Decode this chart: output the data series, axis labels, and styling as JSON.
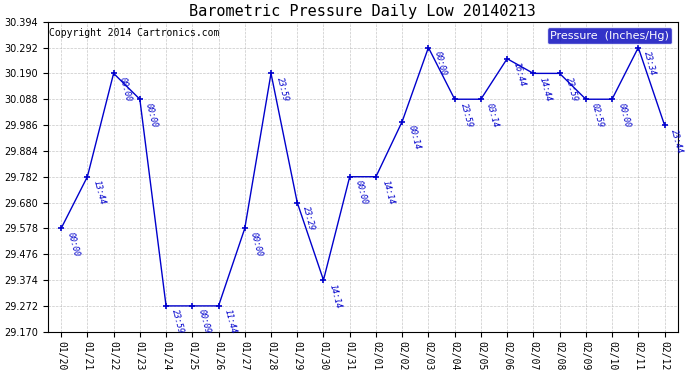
{
  "title": "Barometric Pressure Daily Low 20140213",
  "copyright": "Copyright 2014 Cartronics.com",
  "ylabel": "Pressure  (Inches/Hg)",
  "ylim": [
    29.17,
    30.394
  ],
  "background_color": "#ffffff",
  "plot_bg_color": "#ffffff",
  "line_color": "#0000cc",
  "grid_color": "#b0b0b0",
  "x_labels": [
    "01/20",
    "01/21",
    "01/22",
    "01/23",
    "01/24",
    "01/25",
    "01/26",
    "01/27",
    "01/28",
    "01/29",
    "01/30",
    "01/31",
    "02/01",
    "02/02",
    "02/03",
    "02/04",
    "02/05",
    "02/06",
    "02/07",
    "02/08",
    "02/09",
    "02/10",
    "02/11",
    "02/12"
  ],
  "y_values": [
    29.578,
    29.782,
    30.19,
    30.088,
    29.272,
    29.272,
    29.272,
    29.578,
    30.19,
    29.68,
    29.374,
    29.782,
    29.782,
    30.0,
    30.292,
    30.088,
    30.088,
    30.248,
    30.19,
    30.19,
    30.088,
    30.088,
    30.292,
    29.986
  ],
  "point_labels": [
    "00:00",
    "13:44",
    "00:00",
    "00:00",
    "23:59",
    "00:09",
    "11:44",
    "00:00",
    "23:59",
    "23:29",
    "14:14",
    "00:00",
    "14:14",
    "00:14",
    "00:00",
    "23:59",
    "03:14",
    "16:44",
    "14:44",
    "23:59",
    "02:59",
    "00:00",
    "23:34",
    "23:44"
  ],
  "yticks": [
    29.17,
    29.272,
    29.374,
    29.476,
    29.578,
    29.68,
    29.782,
    29.884,
    29.986,
    30.088,
    30.19,
    30.292,
    30.394
  ],
  "title_fontsize": 11,
  "tick_fontsize": 7,
  "legend_fontsize": 8,
  "copyright_fontsize": 7,
  "label_fontsize": 6
}
